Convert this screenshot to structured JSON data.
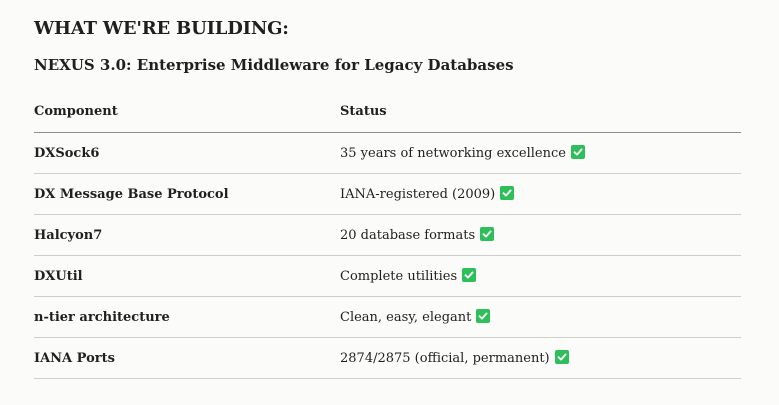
{
  "heading": "WHAT WE'RE BUILDING:",
  "subheading": "NEXUS 3.0: Enterprise Middleware for Legacy Databases",
  "table": {
    "columns": [
      "Component",
      "Status"
    ],
    "rows": [
      {
        "component": "DXSock6",
        "status": "35 years of networking excellence",
        "icon": "check-icon"
      },
      {
        "component": "DX Message Base Protocol",
        "status": "IANA-registered (2009)",
        "icon": "check-icon"
      },
      {
        "component": "Halcyon7",
        "status": "20 database formats",
        "icon": "check-icon"
      },
      {
        "component": "DXUtil",
        "status": "Complete utilities",
        "icon": "check-icon"
      },
      {
        "component": "n-tier architecture",
        "status": "Clean, easy, elegant",
        "icon": "check-icon"
      },
      {
        "component": "IANA Ports",
        "status": "2874/2875 (official, permanent)",
        "icon": "check-icon"
      }
    ]
  },
  "colors": {
    "check": "#2fbf5a",
    "background": "#fbfbf9"
  }
}
